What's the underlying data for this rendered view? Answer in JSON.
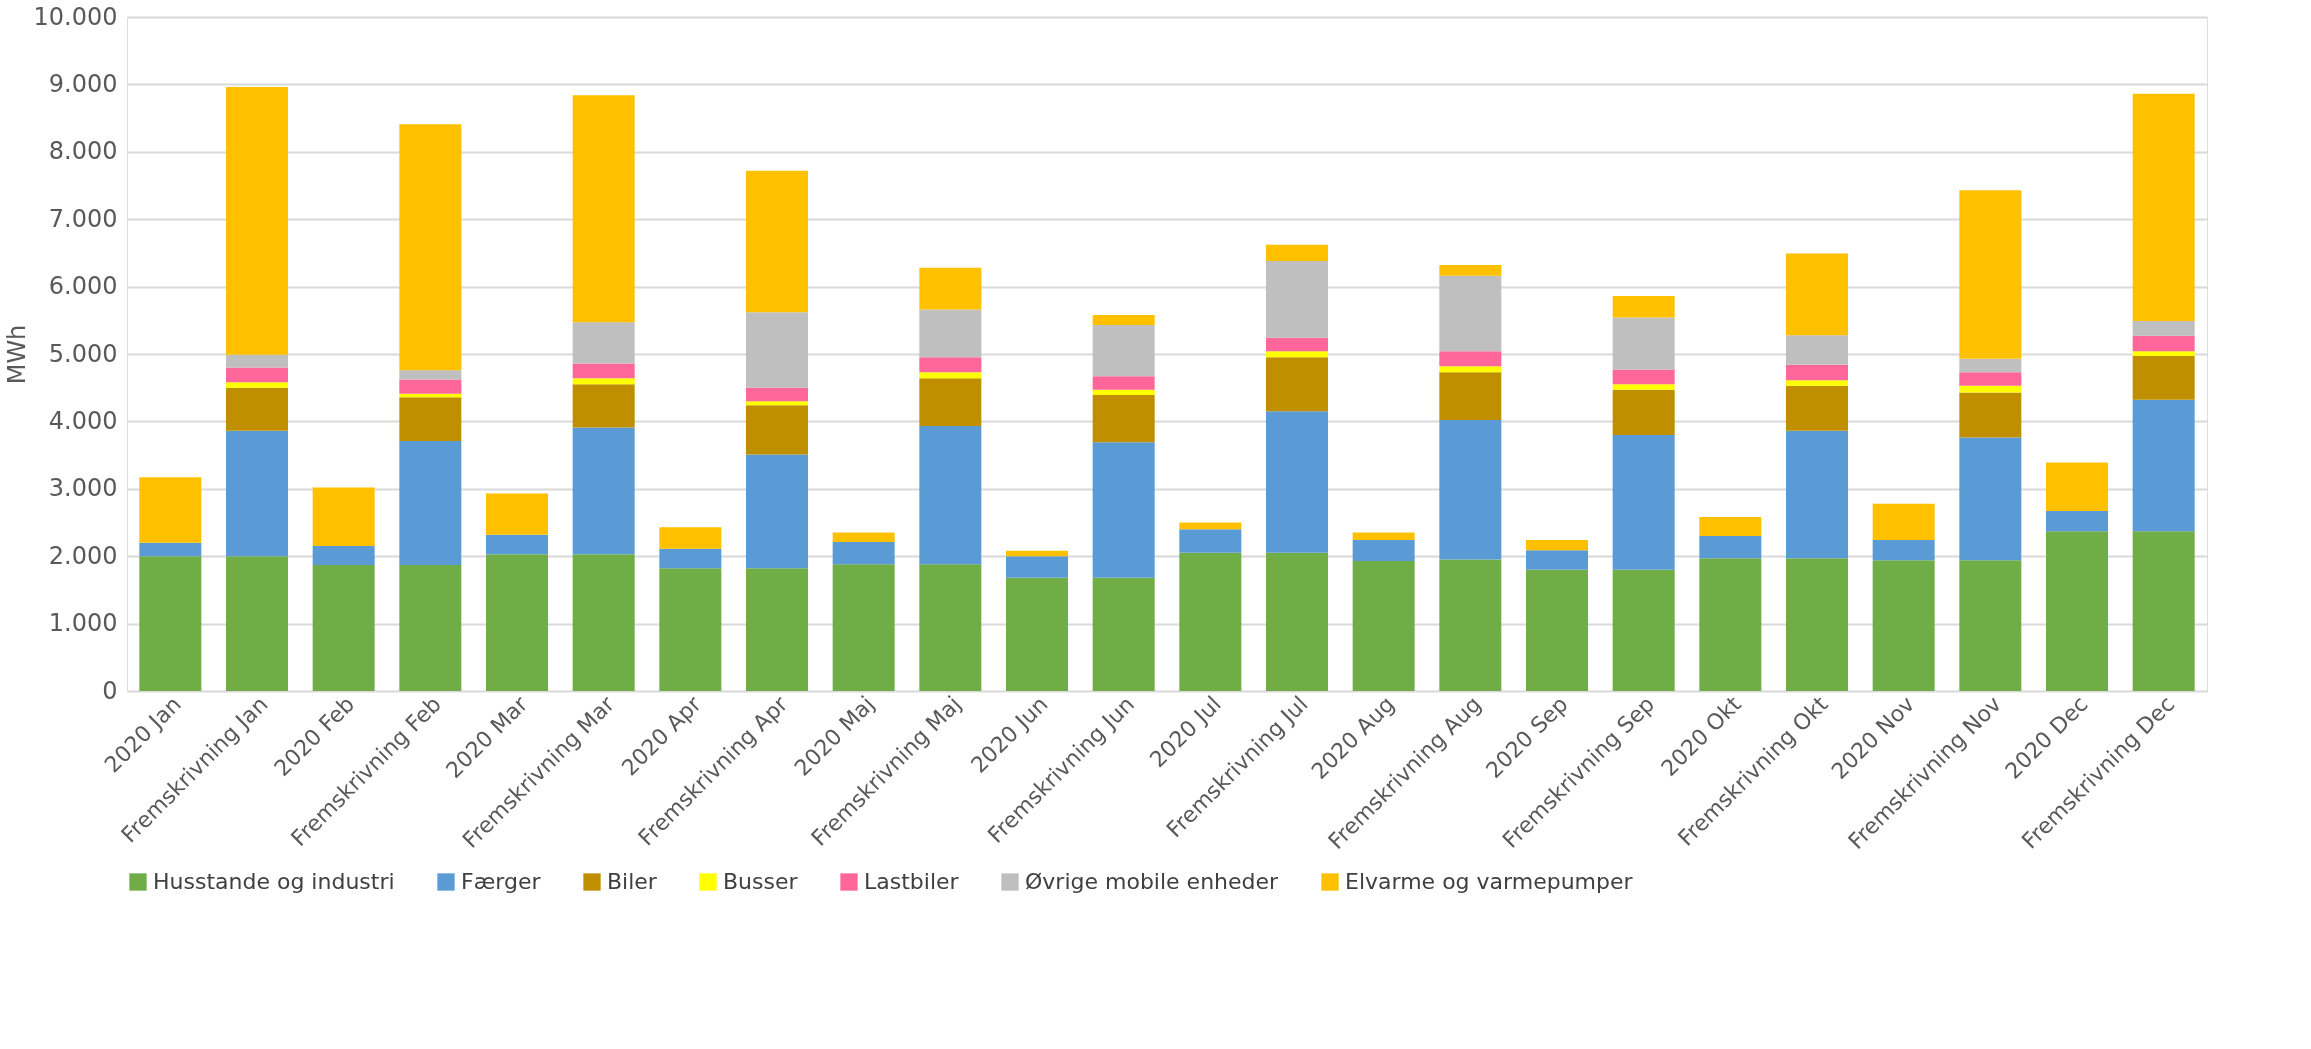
{
  "chart_data": {
    "type": "bar",
    "stacked": true,
    "ylabel": "MWh",
    "grid": "y",
    "legend": "bottom",
    "categories": [
      "2020 Jan",
      "Fremskrivning Jan",
      "2020 Feb",
      "Fremskrivning Feb",
      "2020 Mar",
      "Fremskrivning Mar",
      "2020 Apr",
      "Fremskrivning Apr",
      "2020 Maj",
      "Fremskrivning Maj",
      "2020 Jun",
      "Fremskrivning Jun",
      "2020 Jul",
      "Fremskrivning Jul",
      "2020 Aug",
      "Fremskrivning Aug",
      "2020 Sep",
      "Fremskrivning Sep",
      "2020 Okt",
      "Fremskrivning Okt",
      "2020 Nov",
      "Fremskrivning Nov",
      "2020 Dec",
      "Fremskrivning Dec"
    ],
    "ylim": [
      0,
      10000
    ],
    "yticks": [
      0,
      {
        "value": 1000,
        "label": "1.000"
      },
      {
        "value": 2000,
        "label": "2.000"
      },
      {
        "value": 3000,
        "label": "3.000"
      },
      {
        "value": 4000,
        "label": "4.000"
      },
      {
        "value": 5000,
        "label": "5.000"
      },
      {
        "value": 6000,
        "label": "6.000"
      },
      {
        "value": 7000,
        "label": "7.000"
      },
      {
        "value": 8000,
        "label": "8.000"
      },
      {
        "value": 9000,
        "label": "9.000"
      },
      {
        "value": 10000,
        "label": "10.000"
      }
    ],
    "series": [
      {
        "name": "Husstande og industri",
        "color": "#70ad47",
        "values": [
          2000,
          2000,
          1870,
          1870,
          2030,
          2030,
          1820,
          1820,
          1880,
          1880,
          1680,
          1680,
          2050,
          2050,
          1930,
          1950,
          1800,
          1800,
          1970,
          1970,
          1940,
          1940,
          2370,
          2370
        ]
      },
      {
        "name": "Færger",
        "color": "#5b9bd5",
        "values": [
          200,
          1860,
          280,
          1840,
          290,
          1880,
          290,
          1690,
          330,
          2050,
          320,
          2010,
          350,
          2100,
          310,
          2070,
          290,
          2000,
          330,
          1890,
          300,
          1820,
          300,
          1950
        ]
      },
      {
        "name": "Biler",
        "color": "#bf8f00",
        "values": [
          0,
          640,
          0,
          650,
          0,
          640,
          0,
          730,
          0,
          710,
          0,
          700,
          0,
          800,
          0,
          710,
          0,
          670,
          0,
          670,
          0,
          670,
          0,
          650
        ]
      },
      {
        "name": "Busser",
        "color": "#ffff00",
        "values": [
          0,
          80,
          0,
          50,
          0,
          90,
          0,
          60,
          0,
          90,
          0,
          80,
          0,
          90,
          0,
          90,
          0,
          80,
          0,
          80,
          0,
          100,
          0,
          70
        ]
      },
      {
        "name": "Lastbiler",
        "color": "#ff6699",
        "values": [
          0,
          220,
          0,
          210,
          0,
          220,
          0,
          200,
          0,
          220,
          0,
          200,
          0,
          200,
          0,
          220,
          0,
          220,
          0,
          230,
          0,
          200,
          0,
          230
        ]
      },
      {
        "name": "Øvrige mobile enheder",
        "color": "#bfbfbf",
        "values": [
          0,
          190,
          0,
          140,
          0,
          610,
          0,
          1120,
          0,
          710,
          0,
          760,
          0,
          1140,
          0,
          1120,
          0,
          770,
          0,
          440,
          0,
          200,
          0,
          220
        ]
      },
      {
        "name": "Elvarme og varmepumper",
        "color": "#ffc000",
        "values": [
          970,
          3970,
          870,
          3650,
          610,
          3370,
          320,
          2100,
          140,
          620,
          80,
          150,
          100,
          240,
          110,
          160,
          150,
          320,
          280,
          1210,
          540,
          2500,
          720,
          3370
        ]
      }
    ]
  }
}
